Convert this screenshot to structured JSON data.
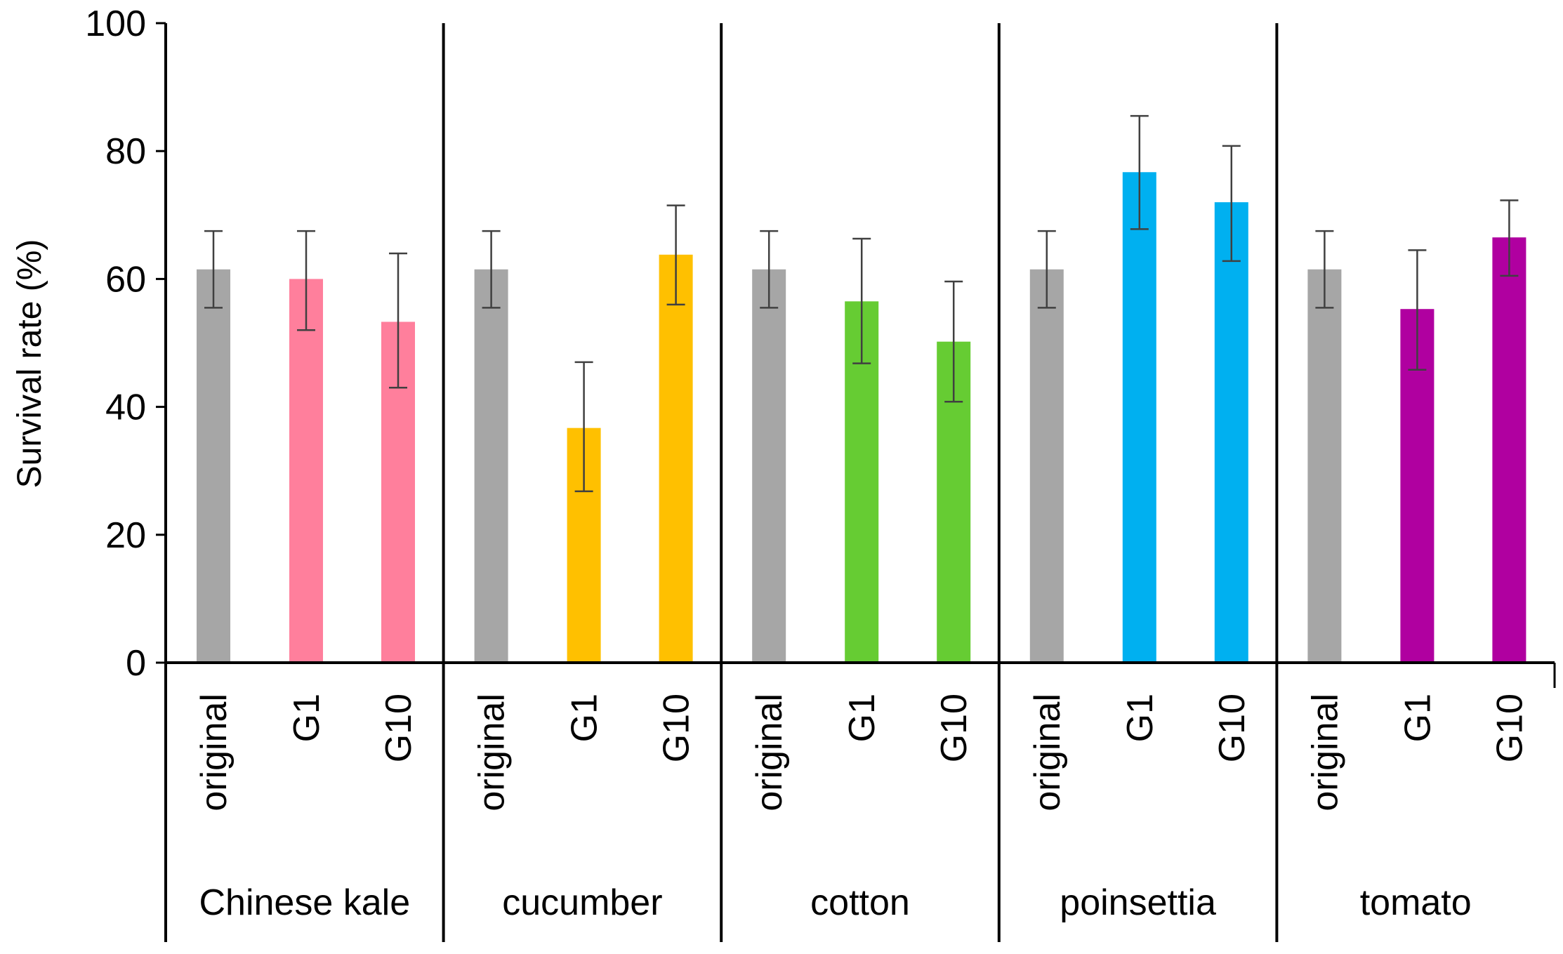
{
  "chart_data": {
    "type": "bar",
    "title": "",
    "xlabel": "",
    "ylabel": "Survival rate (%)",
    "ylim": [
      0,
      100
    ],
    "yticks": [
      0,
      20,
      40,
      60,
      80,
      100
    ],
    "grid": false,
    "groups": [
      {
        "name": "Chinese kale",
        "color": "#ff7f9c",
        "bars": [
          {
            "label": "original",
            "value": 61.5,
            "err_low": 55.5,
            "err_high": 67.5
          },
          {
            "label": "G1",
            "value": 60.0,
            "err_low": 52.0,
            "err_high": 67.5
          },
          {
            "label": "G10",
            "value": 53.3,
            "err_low": 43.0,
            "err_high": 64.0
          }
        ]
      },
      {
        "name": "cucumber",
        "color": "#ffc000",
        "bars": [
          {
            "label": "original",
            "value": 61.5,
            "err_low": 55.5,
            "err_high": 67.5
          },
          {
            "label": "G1",
            "value": 36.7,
            "err_low": 26.8,
            "err_high": 47.0
          },
          {
            "label": "G10",
            "value": 63.8,
            "err_low": 56.0,
            "err_high": 71.5
          }
        ]
      },
      {
        "name": "cotton",
        "color": "#66cc33",
        "bars": [
          {
            "label": "original",
            "value": 61.5,
            "err_low": 55.5,
            "err_high": 67.5
          },
          {
            "label": "G1",
            "value": 56.5,
            "err_low": 46.8,
            "err_high": 66.3
          },
          {
            "label": "G10",
            "value": 50.2,
            "err_low": 40.8,
            "err_high": 59.6
          }
        ]
      },
      {
        "name": "poinsettia",
        "color": "#00b0f0",
        "bars": [
          {
            "label": "original",
            "value": 61.5,
            "err_low": 55.5,
            "err_high": 67.5
          },
          {
            "label": "G1",
            "value": 76.7,
            "err_low": 67.8,
            "err_high": 85.5
          },
          {
            "label": "G10",
            "value": 72.0,
            "err_low": 62.8,
            "err_high": 80.8
          }
        ]
      },
      {
        "name": "tomato",
        "color": "#b000a0",
        "bars": [
          {
            "label": "original",
            "value": 61.5,
            "err_low": 55.5,
            "err_high": 67.5
          },
          {
            "label": "G1",
            "value": 55.3,
            "err_low": 45.8,
            "err_high": 64.5
          },
          {
            "label": "G10",
            "value": 66.5,
            "err_low": 60.5,
            "err_high": 72.3
          }
        ]
      }
    ],
    "original_color": "#a6a6a6",
    "errorbar_color": "#404040"
  }
}
